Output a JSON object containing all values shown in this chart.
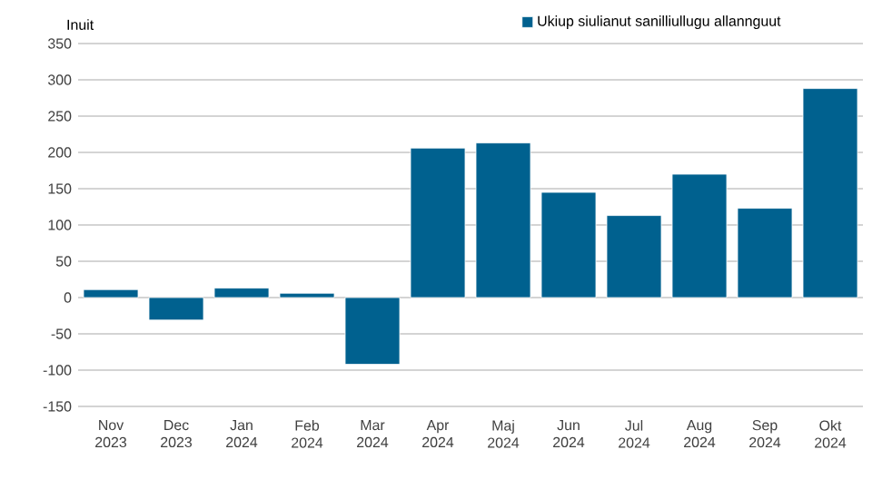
{
  "chart_data": {
    "type": "bar",
    "ylabel": "Inuit",
    "categories": [
      "Nov 2023",
      "Dec 2023",
      "Jan 2024",
      "Feb 2024",
      "Mar 2024",
      "Apr 2024",
      "Maj 2024",
      "Jun 2024",
      "Jul 2024",
      "Aug 2024",
      "Sep 2024",
      "Okt 2024"
    ],
    "series": [
      {
        "name": "Ukiup siulianut sanilliullugu allannguut",
        "color": "#00618f",
        "values": [
          11,
          -31,
          13,
          6,
          -92,
          206,
          213,
          145,
          113,
          170,
          123,
          288
        ]
      }
    ],
    "ylim": [
      -150,
      350
    ],
    "yticks": [
      -150,
      -100,
      -50,
      0,
      50,
      100,
      150,
      200,
      250,
      300,
      350
    ],
    "grid": "y",
    "legend": "top right"
  }
}
